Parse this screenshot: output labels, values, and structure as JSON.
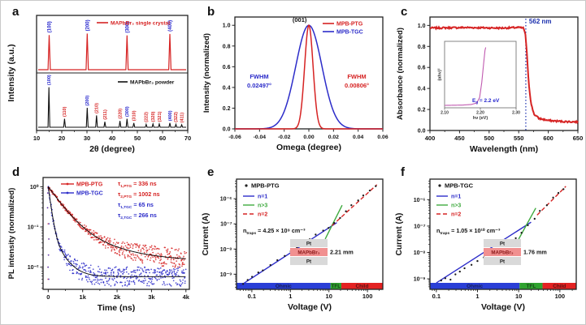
{
  "chart_data": [
    {
      "panel_letter": "a",
      "type": "line",
      "xlabel": "2θ (degree)",
      "ylabel": "Intensity (a.u.)",
      "xlim": [
        10,
        70
      ],
      "xticks": [
        10,
        20,
        30,
        40,
        50,
        60,
        70
      ],
      "top_series": {
        "name": "MAPbBr₃ single crystal",
        "color": "#d62323",
        "label_color": "#2525cd",
        "peaks": [
          [
            15.0,
            0.93,
            "(100)"
          ],
          [
            30.1,
            0.97,
            "(200)"
          ],
          [
            45.9,
            0.92,
            "(300)"
          ],
          [
            62.9,
            0.96,
            "(400)"
          ]
        ]
      },
      "bottom_series": {
        "name": "MAPbBr₃ powder",
        "color": "#111111",
        "peaks": [
          [
            14.9,
            0.95,
            "(100)",
            "#2525cd"
          ],
          [
            21.1,
            0.2,
            "(110)",
            "#d62323"
          ],
          [
            30.1,
            0.46,
            "(200)",
            "#2525cd"
          ],
          [
            33.8,
            0.28,
            "(210)",
            "#d62323"
          ],
          [
            37.1,
            0.13,
            "(211)",
            "#d62323"
          ],
          [
            43.1,
            0.15,
            "(220)",
            "#d62323"
          ],
          [
            45.9,
            0.2,
            "(300)",
            "#2525cd"
          ],
          [
            48.6,
            0.1,
            "(310)",
            "#d62323"
          ],
          [
            53.5,
            0.07,
            "(222)",
            "#d62323"
          ],
          [
            56.2,
            0.08,
            "(320)",
            "#d62323"
          ],
          [
            58.7,
            0.08,
            "(321)",
            "#d62323"
          ],
          [
            62.9,
            0.1,
            "(400)",
            "#2525cd"
          ],
          [
            65.3,
            0.07,
            "(322)",
            "#d62323"
          ],
          [
            67.6,
            0.06,
            "(411)",
            "#d62323"
          ]
        ]
      }
    },
    {
      "panel_letter": "b",
      "type": "line",
      "xlabel": "Omega (degree)",
      "ylabel": "Intensity (normalized)",
      "xlim": [
        -0.06,
        0.06
      ],
      "xticks": [
        "-0.06",
        "-0.04",
        "-0.02",
        "0.00",
        "0.02",
        "0.04",
        "0.06"
      ],
      "yticks": [
        "0.0",
        "0.2",
        "0.4",
        "0.6",
        "0.8",
        "1.0"
      ],
      "peak_label": "(001)",
      "series": [
        {
          "name": "MPB-PTG",
          "color": "#d62323",
          "fwhm_deg": 0.00806
        },
        {
          "name": "MPB-TGC",
          "color": "#2c2cc9",
          "fwhm_deg": 0.02497
        }
      ],
      "annotations": [
        {
          "lines": [
            "FWHM",
            "0.02497°"
          ],
          "color": "#2c2cc9",
          "side": "left"
        },
        {
          "lines": [
            "FWHM",
            "0.00806°"
          ],
          "color": "#d62323",
          "side": "right"
        }
      ]
    },
    {
      "panel_letter": "c",
      "type": "line",
      "xlabel": "Wavelength (nm)",
      "ylabel": "Absorbance (normalized)",
      "xlim": [
        400,
        650
      ],
      "xticks": [
        400,
        450,
        500,
        550,
        600,
        650
      ],
      "yticks": [
        "0.0",
        "0.2",
        "0.4",
        "0.6",
        "0.8",
        "1.0"
      ],
      "series_color": "#d62323",
      "keypoints": [
        [
          400,
          0.975
        ],
        [
          460,
          0.98
        ],
        [
          520,
          0.975
        ],
        [
          550,
          0.98
        ],
        [
          558,
          0.975
        ],
        [
          561,
          0.93
        ],
        [
          564,
          0.72
        ],
        [
          567,
          0.45
        ],
        [
          571,
          0.25
        ],
        [
          576,
          0.155
        ],
        [
          584,
          0.115
        ],
        [
          600,
          0.095
        ],
        [
          625,
          0.085
        ],
        [
          650,
          0.082
        ]
      ],
      "cutoff_nm": 562,
      "cutoff_label": "562 nm",
      "cutoff_color": "#1a2fae",
      "inset": {
        "xlabel": "hν (eV)",
        "ylabel": "(αhν)²",
        "xlim": [
          2.1,
          2.3
        ],
        "xticks": [
          "2.10",
          "2.20",
          "2.30"
        ],
        "curve_color": "#c05ab0",
        "annotation_color": "#2525cd",
        "bandgap": {
          "main": "E",
          "sub": "g",
          "rest": " = 2.2 eV"
        },
        "keypoints": [
          [
            2.1,
            0.04
          ],
          [
            2.15,
            0.045
          ],
          [
            2.175,
            0.055
          ],
          [
            2.19,
            0.08
          ],
          [
            2.198,
            0.17
          ],
          [
            2.204,
            0.42
          ],
          [
            2.209,
            0.72
          ],
          [
            2.213,
            0.95
          ],
          [
            2.215,
            1.0
          ]
        ]
      }
    },
    {
      "panel_letter": "d",
      "type": "scatter",
      "xlabel": "Time (ns)",
      "ylabel": "PL intensity (normalized)",
      "xlim": [
        -150,
        4100
      ],
      "xticks": [
        [
          0,
          "0"
        ],
        [
          1000,
          "1k"
        ],
        [
          2000,
          "2k"
        ],
        [
          3000,
          "3k"
        ],
        [
          4000,
          "4k"
        ]
      ],
      "yticks": [
        [
          1,
          "10⁰"
        ],
        [
          0.1,
          "10⁻¹"
        ],
        [
          0.01,
          "10⁻²"
        ]
      ],
      "series": [
        {
          "name": "MPB-PTG",
          "color": "#d62323",
          "a1": 0.88,
          "tau1": 336,
          "a2": 0.115,
          "tau2": 1002,
          "floor": 0.014
        },
        {
          "name": "MPB-TGC",
          "color": "#2c2cc9",
          "a1": 0.93,
          "tau1": 65,
          "a2": 0.075,
          "tau2": 266,
          "floor": 0.0058
        }
      ],
      "tau_annotations": [
        {
          "sub": "1,PTG",
          "text": " = 336 ns",
          "color": "#d62323"
        },
        {
          "sub": "2,PTG",
          "text": " = 1002 ns",
          "color": "#d62323"
        },
        {
          "sub": "1,TGC",
          "text": " = 65 ns",
          "color": "#2c2cc9"
        },
        {
          "sub": "2,TGC",
          "text": " = 266 ns",
          "color": "#2c2cc9"
        }
      ]
    },
    {
      "panel_letter": "e",
      "type": "scatter",
      "xlabel": "Voltage (V)",
      "ylabel": "Current (A)",
      "xlim": [
        0.04,
        250
      ],
      "ylim": [
        2.5e-10,
        6e-06
      ],
      "xticks": [
        [
          0.1,
          "0.1"
        ],
        [
          1,
          "1"
        ],
        [
          10,
          "10"
        ],
        [
          100,
          "100"
        ]
      ],
      "yticks": [
        [
          1e-09,
          "10⁻⁹"
        ],
        [
          1e-08,
          "10⁻⁸"
        ],
        [
          1e-07,
          "10⁻⁷"
        ],
        [
          1e-06,
          "10⁻⁶"
        ]
      ],
      "sample": "MPB-PTG",
      "points": [
        [
          0.06,
          4.2e-10
        ],
        [
          0.08,
          6e-10
        ],
        [
          0.1,
          7.5e-10
        ],
        [
          0.15,
          1.1e-09
        ],
        [
          0.2,
          1.5e-09
        ],
        [
          0.3,
          2.2e-09
        ],
        [
          0.45,
          3.4e-09
        ],
        [
          0.7,
          5.2e-09
        ],
        [
          1.0,
          7.6e-09
        ],
        [
          1.5,
          1.15e-08
        ],
        [
          2.2,
          1.7e-08
        ],
        [
          3.2,
          2.4e-08
        ],
        [
          4.7,
          3.6e-08
        ],
        [
          7,
          5.2e-08
        ],
        [
          10,
          7.4e-08
        ],
        [
          14,
          1.1e-07
        ],
        [
          20,
          1.8e-07
        ],
        [
          28,
          3e-07
        ],
        [
          40,
          5.2e-07
        ],
        [
          57,
          8.6e-07
        ],
        [
          80,
          1.4e-06
        ],
        [
          115,
          2.1e-06
        ],
        [
          160,
          3.2e-06
        ]
      ],
      "fit_lines": [
        {
          "label": "n=1",
          "color": "#2c2cc9",
          "x": [
            0.05,
            16
          ],
          "y": [
            3.5e-10,
            1.12e-07
          ],
          "dash": null
        },
        {
          "label": "n>3",
          "color": "#3faa3f",
          "x": [
            8,
            22
          ],
          "y": [
            2.5e-08,
            5.5e-07
          ],
          "dash": null
        },
        {
          "label": "n=2",
          "color": "#d62323",
          "x": [
            12,
            175
          ],
          "y": [
            8.5e-08,
            3.6e-06
          ],
          "dash": "5 3"
        }
      ],
      "ntraps": {
        "main": "n",
        "sub": "traps",
        "rest": " = 4.25 × 10⁹ cm⁻³"
      },
      "regions": [
        {
          "label": "Ohmic",
          "color": "#2a3fd6",
          "to": 11
        },
        {
          "label": "TFL",
          "color": "#2fa32f",
          "to": 21
        },
        {
          "label": "Child",
          "color": "#e32222",
          "to": null
        }
      ],
      "stack": {
        "layers": [
          "Pt",
          "MAPbBr₃",
          "Pt"
        ],
        "thickness": "2.21 mm"
      }
    },
    {
      "panel_letter": "f",
      "type": "scatter",
      "xlabel": "Voltage (V)",
      "ylabel": "Current (A)",
      "xlim": [
        0.07,
        250
      ],
      "ylim": [
        4e-10,
        6e-06
      ],
      "xticks": [
        [
          0.1,
          "0.1"
        ],
        [
          1,
          "1"
        ],
        [
          10,
          "10"
        ],
        [
          100,
          "100"
        ]
      ],
      "yticks": [
        [
          1e-09,
          "10⁻⁹"
        ],
        [
          1e-08,
          "10⁻⁸"
        ],
        [
          1e-07,
          "10⁻⁷"
        ],
        [
          1e-06,
          "10⁻⁶"
        ]
      ],
      "sample": "MPB-TGC",
      "points": [
        [
          0.13,
          9e-10
        ],
        [
          0.17,
          1.1e-09
        ],
        [
          0.22,
          1e-09
        ],
        [
          0.28,
          1.5e-09
        ],
        [
          0.38,
          1.9e-09
        ],
        [
          0.5,
          2.5e-09
        ],
        [
          0.7,
          3.3e-09
        ],
        [
          1.0,
          4.6e-09
        ],
        [
          1.4,
          6.2e-09
        ],
        [
          2.0,
          8.6e-09
        ],
        [
          2.9,
          1.2e-08
        ],
        [
          4.2,
          1.7e-08
        ],
        [
          6.0,
          2.4e-08
        ],
        [
          8.5,
          3.4e-08
        ],
        [
          12,
          5.6e-08
        ],
        [
          17,
          1e-07
        ],
        [
          24,
          1.9e-07
        ],
        [
          34,
          3.6e-07
        ],
        [
          48,
          6.6e-07
        ],
        [
          68,
          1.15e-06
        ],
        [
          95,
          1.9e-06
        ],
        [
          120,
          2.6e-06
        ]
      ],
      "fit_lines": [
        {
          "label": "n=1",
          "color": "#2c2cc9",
          "x": [
            0.1,
            20
          ],
          "y": [
            7e-10,
            1.4e-07
          ],
          "dash": null
        },
        {
          "label": "n>3",
          "color": "#3faa3f",
          "x": [
            10,
            26
          ],
          "y": [
            3.2e-08,
            4.8e-07
          ],
          "dash": null
        },
        {
          "label": "n=2",
          "color": "#d62323",
          "x": [
            28,
            140
          ],
          "y": [
            2.6e-07,
            3.2e-06
          ],
          "dash": "5 3"
        }
      ],
      "ntraps": {
        "main": "n",
        "sub": "traps",
        "rest": " = 1.05 × 10¹⁰ cm⁻³"
      },
      "regions": [
        {
          "label": "Ohmic",
          "color": "#2a3fd6",
          "to": 10.5
        },
        {
          "label": "TFL",
          "color": "#2fa32f",
          "to": 38
        },
        {
          "label": "Child",
          "color": "#e32222",
          "to": null
        }
      ],
      "stack": {
        "layers": [
          "Pt",
          "MAPbBr₃",
          "Pt"
        ],
        "thickness": "1.76 mm"
      }
    }
  ]
}
